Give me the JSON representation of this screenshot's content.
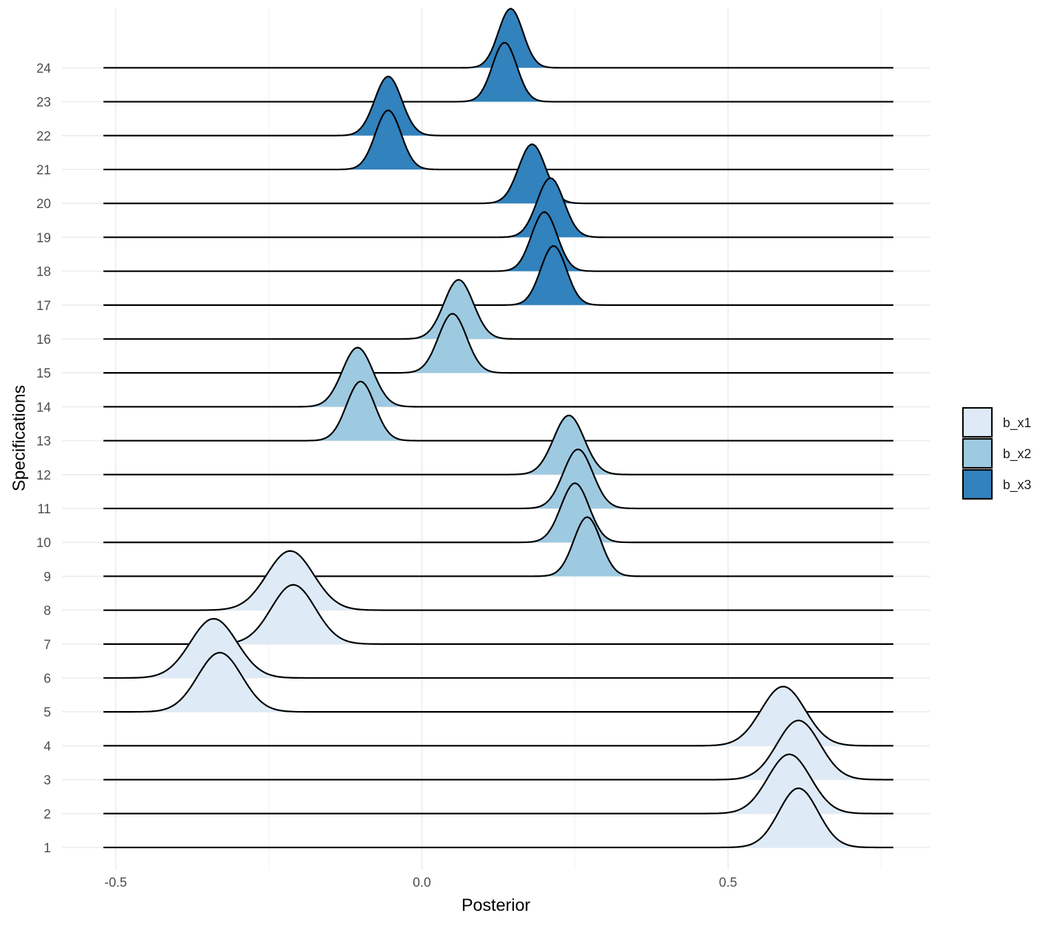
{
  "chart_data": {
    "type": "ridgeline",
    "xlabel": "Posterior",
    "ylabel": "Specifications",
    "xlim": [
      -0.52,
      0.77
    ],
    "x_ticks": [
      -0.5,
      0.0,
      0.5
    ],
    "x_tick_labels": [
      "-0.5",
      "0.0",
      "0.5"
    ],
    "grid": true,
    "legend_position": "right",
    "colors": {
      "b_x1": "#deebf7",
      "b_x2": "#9ecae1",
      "b_x3": "#3182bd"
    },
    "legend": [
      {
        "name": "b_x1"
      },
      {
        "name": "b_x2"
      },
      {
        "name": "b_x3"
      }
    ],
    "series": [
      {
        "spec": "1",
        "group": "b_x1",
        "mean": 0.615,
        "sd": 0.032
      },
      {
        "spec": "2",
        "group": "b_x1",
        "mean": 0.6,
        "sd": 0.035
      },
      {
        "spec": "3",
        "group": "b_x1",
        "mean": 0.615,
        "sd": 0.035
      },
      {
        "spec": "4",
        "group": "b_x1",
        "mean": 0.59,
        "sd": 0.036
      },
      {
        "spec": "5",
        "group": "b_x1",
        "mean": -0.33,
        "sd": 0.036
      },
      {
        "spec": "6",
        "group": "b_x1",
        "mean": -0.34,
        "sd": 0.038
      },
      {
        "spec": "7",
        "group": "b_x1",
        "mean": -0.21,
        "sd": 0.036
      },
      {
        "spec": "8",
        "group": "b_x1",
        "mean": -0.215,
        "sd": 0.038
      },
      {
        "spec": "9",
        "group": "b_x2",
        "mean": 0.27,
        "sd": 0.022
      },
      {
        "spec": "10",
        "group": "b_x2",
        "mean": 0.25,
        "sd": 0.023
      },
      {
        "spec": "11",
        "group": "b_x2",
        "mean": 0.255,
        "sd": 0.024
      },
      {
        "spec": "12",
        "group": "b_x2",
        "mean": 0.24,
        "sd": 0.025
      },
      {
        "spec": "13",
        "group": "b_x2",
        "mean": -0.1,
        "sd": 0.023
      },
      {
        "spec": "14",
        "group": "b_x2",
        "mean": -0.105,
        "sd": 0.025
      },
      {
        "spec": "15",
        "group": "b_x2",
        "mean": 0.05,
        "sd": 0.023
      },
      {
        "spec": "16",
        "group": "b_x2",
        "mean": 0.06,
        "sd": 0.024
      },
      {
        "spec": "17",
        "group": "b_x3",
        "mean": 0.215,
        "sd": 0.021
      },
      {
        "spec": "18",
        "group": "b_x3",
        "mean": 0.2,
        "sd": 0.021
      },
      {
        "spec": "19",
        "group": "b_x3",
        "mean": 0.21,
        "sd": 0.022
      },
      {
        "spec": "20",
        "group": "b_x3",
        "mean": 0.18,
        "sd": 0.022
      },
      {
        "spec": "21",
        "group": "b_x3",
        "mean": -0.055,
        "sd": 0.021
      },
      {
        "spec": "22",
        "group": "b_x3",
        "mean": -0.055,
        "sd": 0.022
      },
      {
        "spec": "23",
        "group": "b_x3",
        "mean": 0.135,
        "sd": 0.02
      },
      {
        "spec": "24",
        "group": "b_x3",
        "mean": 0.145,
        "sd": 0.02
      }
    ]
  }
}
